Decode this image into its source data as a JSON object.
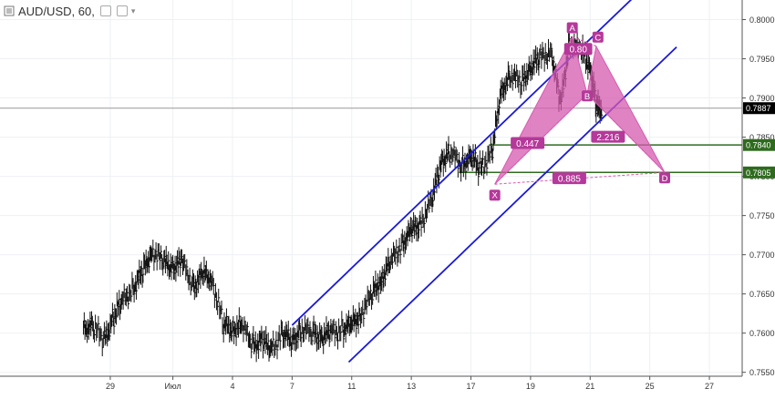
{
  "header": {
    "symbol": "AUD/USD",
    "interval": "60",
    "title": "AUD/USD, 60,",
    "icons": [
      "series-type-icon",
      "settings-icon",
      "visibility-icon"
    ]
  },
  "chart_data": {
    "type": "line",
    "subtype": "ohlc-bars",
    "grid": true,
    "price_axis": {
      "side": "right",
      "ylim": [
        0.7545,
        0.8025
      ],
      "ticks": [
        "0.7550",
        "0.7600",
        "0.7650",
        "0.7700",
        "0.7750",
        "0.7800",
        "0.7850",
        "0.7900",
        "0.7950",
        "0.8000"
      ],
      "ticks_values": [
        0.755,
        0.76,
        0.765,
        0.77,
        0.775,
        0.78,
        0.785,
        0.79,
        0.795,
        0.8
      ]
    },
    "time_axis": {
      "labels": [
        "29",
        "Июл",
        "4",
        "7",
        "11",
        "13",
        "17",
        "19",
        "21",
        "25",
        "27"
      ],
      "label_positions": [
        26.9,
        29.0,
        31.0,
        33.0,
        35.0,
        37.0,
        39.0,
        41.0,
        43.0,
        45.0,
        47.0
      ]
    },
    "price_labels": [
      {
        "value": "0.7887",
        "color": "#000000",
        "line": "#888888"
      },
      {
        "value": "0.7840",
        "color": "#2e6b1e",
        "line": "#2e6b1e"
      },
      {
        "value": "0.7805",
        "color": "#2e6b1e",
        "line": "#2e6b1e"
      }
    ],
    "series": [
      {
        "name": "",
        "kind": "close",
        "x": [
          26.0,
          26.3,
          26.7,
          27.0,
          27.3,
          27.7,
          28.0,
          28.3,
          28.7,
          29.0,
          29.3,
          29.7,
          30.0,
          30.3,
          30.7,
          31.0,
          31.3,
          31.7,
          32.0,
          32.3,
          32.7,
          33.0,
          33.3,
          33.7,
          34.0,
          34.3,
          34.7,
          35.0,
          35.3,
          35.7,
          36.0,
          36.3,
          36.7,
          37.0,
          37.3,
          37.7,
          38.0,
          38.3,
          38.7,
          39.0,
          39.3,
          39.7,
          40.0,
          40.3,
          40.7,
          41.0,
          41.3,
          41.7,
          42.0,
          42.3,
          42.7,
          43.0,
          43.2,
          43.4
        ],
        "y": [
          0.7605,
          0.761,
          0.759,
          0.762,
          0.764,
          0.766,
          0.768,
          0.7705,
          0.769,
          0.7685,
          0.769,
          0.766,
          0.7675,
          0.767,
          0.761,
          0.7605,
          0.761,
          0.7585,
          0.759,
          0.758,
          0.76,
          0.759,
          0.7605,
          0.76,
          0.7595,
          0.76,
          0.7605,
          0.761,
          0.7625,
          0.765,
          0.767,
          0.769,
          0.7715,
          0.773,
          0.774,
          0.777,
          0.782,
          0.783,
          0.7815,
          0.7825,
          0.781,
          0.783,
          0.7905,
          0.793,
          0.792,
          0.794,
          0.795,
          0.796,
          0.789,
          0.797,
          0.796,
          0.794,
          0.789,
          0.7887
        ]
      }
    ],
    "channel_lines": [
      {
        "name": "upper",
        "points": [
          [
            33.0,
            0.761
          ],
          [
            44.5,
            0.803
          ]
        ],
        "color": "#1a1ad6"
      },
      {
        "name": "lower",
        "points": [
          [
            34.9,
            0.7563
          ],
          [
            45.9,
            0.7965
          ]
        ],
        "color": "#1a1ad6"
      }
    ],
    "horizontal_levels": [
      {
        "value": 0.784,
        "from_x": 39.6,
        "color": "#2e6b1e"
      },
      {
        "value": 0.7805,
        "from_x": 38.6,
        "color": "#2e6b1e"
      }
    ],
    "harmonic_pattern": {
      "fill": "#d65aaf",
      "points": {
        "X": [
          39.8,
          0.779
        ],
        "A": [
          42.4,
          0.7978
        ],
        "B": [
          42.9,
          0.7905
        ],
        "C": [
          43.2,
          0.7966
        ],
        "D": [
          45.5,
          0.7805
        ]
      },
      "point_labels": [
        "X",
        "A",
        "B",
        "C",
        "D"
      ],
      "ratios": [
        {
          "label": "0.80",
          "at": [
            42.6,
            0.7962
          ]
        },
        {
          "label": "0.447",
          "at": [
            40.9,
            0.7842
          ]
        },
        {
          "label": "2.216",
          "at": [
            43.6,
            0.785
          ]
        },
        {
          "label": "0.885",
          "at": [
            42.3,
            0.7797
          ]
        }
      ]
    }
  }
}
